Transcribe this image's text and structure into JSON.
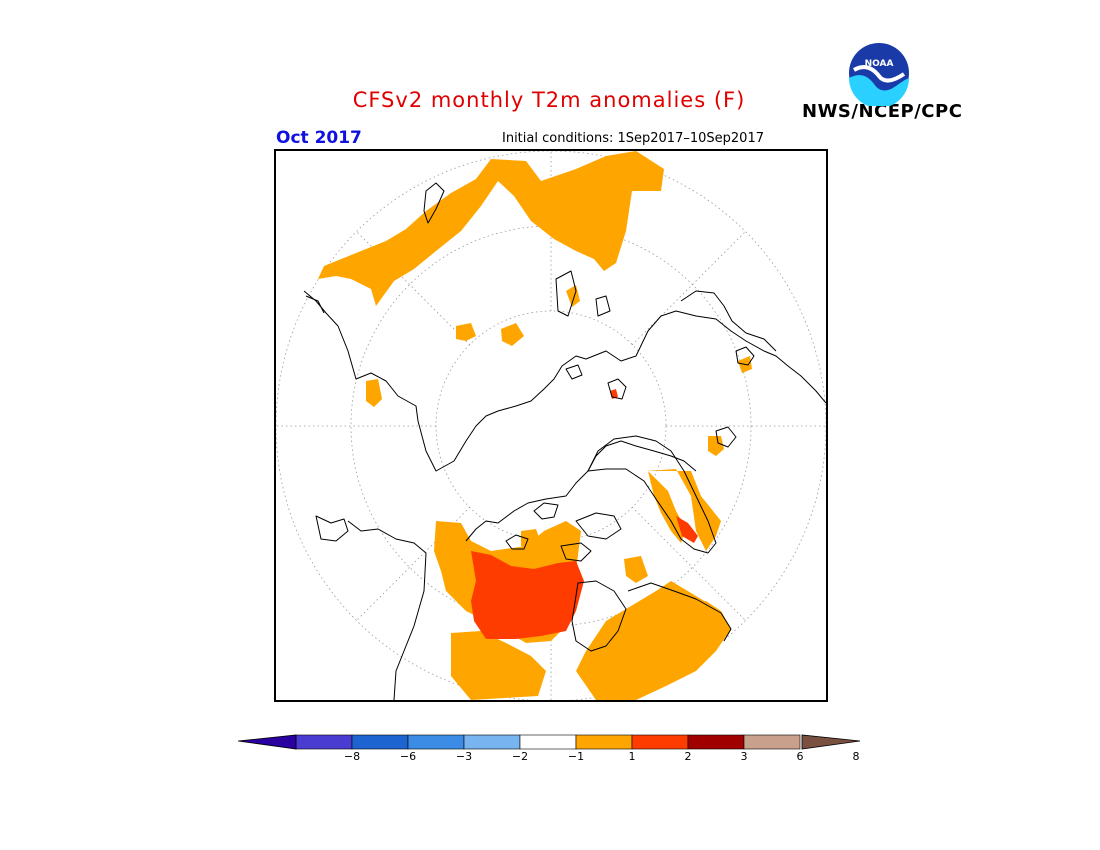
{
  "title": "CFSv2 monthly T2m anomalies (F)",
  "valid_month": "Oct 2017",
  "initial_conditions": "Initial conditions: 1Sep2017–10Sep2017",
  "agency": "NWS/NCEP/CPC",
  "logo_text": "NOAA",
  "colors": {
    "title": "#e00000",
    "month": "#1010e0",
    "anom_1_2": "#ffa500",
    "anom_2_3": "#ff3c00",
    "land_outline": "#000000"
  },
  "colorbar": {
    "ticks": [
      "−8",
      "−6",
      "−3",
      "−2",
      "−1",
      "1",
      "2",
      "3",
      "6",
      "8"
    ],
    "colors": [
      "#2a00a0",
      "#4a3cd0",
      "#1e64d0",
      "#3c8ce6",
      "#78b4f0",
      "#ffffff",
      "#ffa500",
      "#ff3c00",
      "#a00000",
      "#c8a08c",
      "#7a5040"
    ]
  }
}
